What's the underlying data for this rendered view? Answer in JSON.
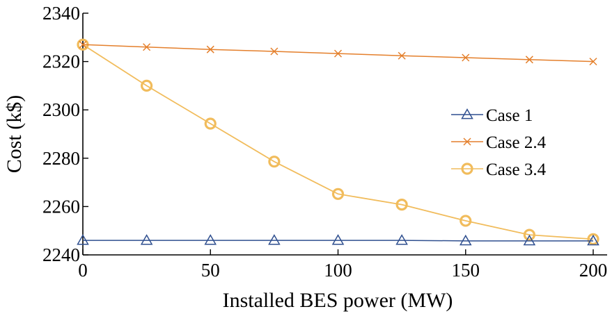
{
  "chart_data": {
    "type": "line",
    "title": "",
    "xlabel": "Installed BES power (MW)",
    "ylabel": "Cost (k$)",
    "xlim": [
      0,
      200
    ],
    "ylim": [
      2240,
      2340
    ],
    "xticks": [
      0,
      50,
      100,
      150,
      200
    ],
    "yticks": [
      2240,
      2260,
      2280,
      2300,
      2320,
      2340
    ],
    "x": [
      0,
      25,
      50,
      75,
      100,
      125,
      150,
      175,
      200
    ],
    "grid": false,
    "legend_position": "right",
    "series": [
      {
        "name": "Case 1",
        "marker": "triangle",
        "color": "#2f4f8f",
        "values": [
          2246,
          2246,
          2246,
          2246,
          2246,
          2246,
          2245.8,
          2245.8,
          2245.8
        ]
      },
      {
        "name": "Case 2.4",
        "marker": "x",
        "color": "#e47f2b",
        "values": [
          2327,
          2326,
          2325,
          2324.2,
          2323.3,
          2322.4,
          2321.6,
          2320.8,
          2320
        ]
      },
      {
        "name": "Case 3.4",
        "marker": "circle",
        "color": "#f1bc5c",
        "values": [
          2327,
          2310,
          2294.3,
          2278.6,
          2265.2,
          2260.8,
          2254.1,
          2248.3,
          2246.5
        ]
      }
    ]
  }
}
